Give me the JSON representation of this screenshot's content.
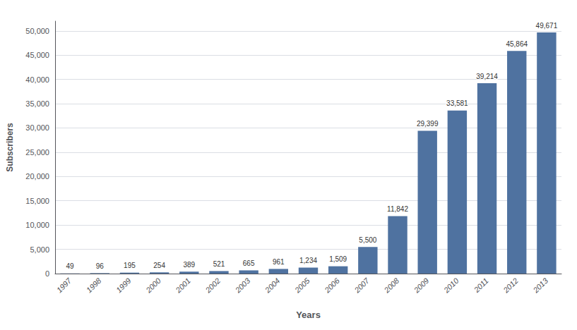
{
  "chart_data": {
    "type": "bar",
    "xlabel": "Years",
    "ylabel": "Subscribers",
    "categories": [
      "1997",
      "1998",
      "1999",
      "2000",
      "2001",
      "2002",
      "2003",
      "2004",
      "2005",
      "2006",
      "2007",
      "2008",
      "2009",
      "2010",
      "2011",
      "2012",
      "2013"
    ],
    "values": [
      49,
      96,
      195,
      254,
      389,
      521,
      665,
      961,
      1234,
      1509,
      5500,
      11842,
      29399,
      33581,
      39214,
      45864,
      49671
    ],
    "value_labels": [
      "49",
      "96",
      "195",
      "254",
      "389",
      "521",
      "665",
      "961",
      "1,234",
      "1,509",
      "5,500",
      "11,842",
      "29,399",
      "33,581",
      "39,214",
      "45,864",
      "49,671"
    ],
    "data_labels": true,
    "color": "#4f72a0",
    "ylim": [
      0,
      52000
    ],
    "yticks": [
      0,
      {
        "value": 5000,
        "label": "5,000"
      },
      {
        "value": 10000,
        "label": "10,000"
      },
      {
        "value": 15000,
        "label": "15,000"
      },
      {
        "value": 20000,
        "label": "20,000"
      },
      {
        "value": 25000,
        "label": "25,000"
      },
      {
        "value": 30000,
        "label": "30,000"
      },
      {
        "value": 35000,
        "label": "35,000"
      },
      {
        "value": 40000,
        "label": "40,000"
      },
      {
        "value": 45000,
        "label": "45,000"
      },
      {
        "value": 50000,
        "label": "50,000"
      }
    ],
    "grid": true
  }
}
